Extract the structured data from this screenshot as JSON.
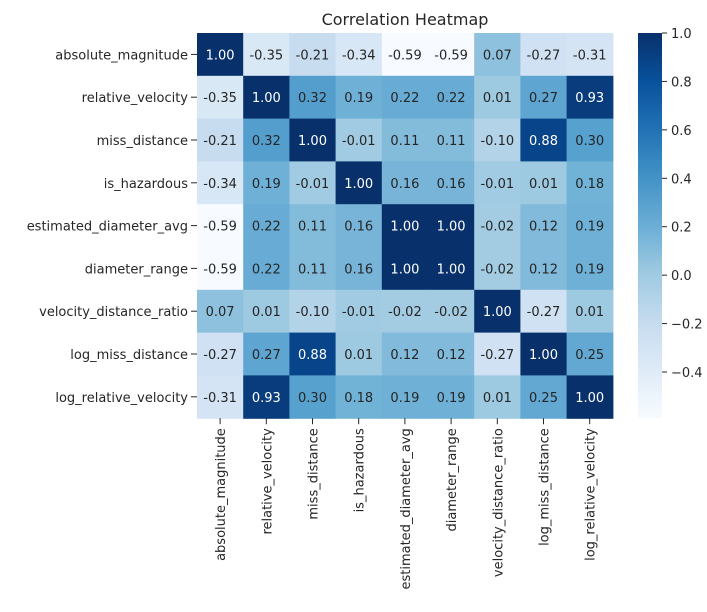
{
  "chart_data": {
    "type": "heatmap",
    "title": "Correlation Heatmap",
    "variables": [
      "absolute_magnitude",
      "relative_velocity",
      "miss_distance",
      "is_hazardous",
      "estimated_diameter_avg",
      "diameter_range",
      "velocity_distance_ratio",
      "log_miss_distance",
      "log_relative_velocity"
    ],
    "values": [
      [
        1.0,
        -0.35,
        -0.21,
        -0.34,
        -0.59,
        -0.59,
        0.07,
        -0.27,
        -0.31
      ],
      [
        -0.35,
        1.0,
        0.32,
        0.19,
        0.22,
        0.22,
        0.01,
        0.27,
        0.93
      ],
      [
        -0.21,
        0.32,
        1.0,
        -0.01,
        0.11,
        0.11,
        -0.1,
        0.88,
        0.3
      ],
      [
        -0.34,
        0.19,
        -0.01,
        1.0,
        0.16,
        0.16,
        -0.01,
        0.01,
        0.18
      ],
      [
        -0.59,
        0.22,
        0.11,
        0.16,
        1.0,
        1.0,
        -0.02,
        0.12,
        0.19
      ],
      [
        -0.59,
        0.22,
        0.11,
        0.16,
        1.0,
        1.0,
        -0.02,
        0.12,
        0.19
      ],
      [
        0.07,
        0.01,
        -0.1,
        -0.01,
        -0.02,
        -0.02,
        1.0,
        -0.27,
        0.01
      ],
      [
        -0.27,
        0.27,
        0.88,
        0.01,
        0.12,
        0.12,
        -0.27,
        1.0,
        0.25
      ],
      [
        -0.31,
        0.93,
        0.3,
        0.18,
        0.19,
        0.19,
        0.01,
        0.25,
        1.0
      ]
    ],
    "value_range": [
      -0.59,
      1.0
    ],
    "colormap": "Blues",
    "colorbar_ticks": [
      "1.0",
      "0.8",
      "0.6",
      "0.4",
      "0.2",
      "0.0",
      "−0.2",
      "−0.4"
    ],
    "colorbar_tick_values": [
      1.0,
      0.8,
      0.6,
      0.4,
      0.2,
      0.0,
      -0.2,
      -0.4
    ],
    "annotated": true,
    "legend": "colorbar-right"
  }
}
